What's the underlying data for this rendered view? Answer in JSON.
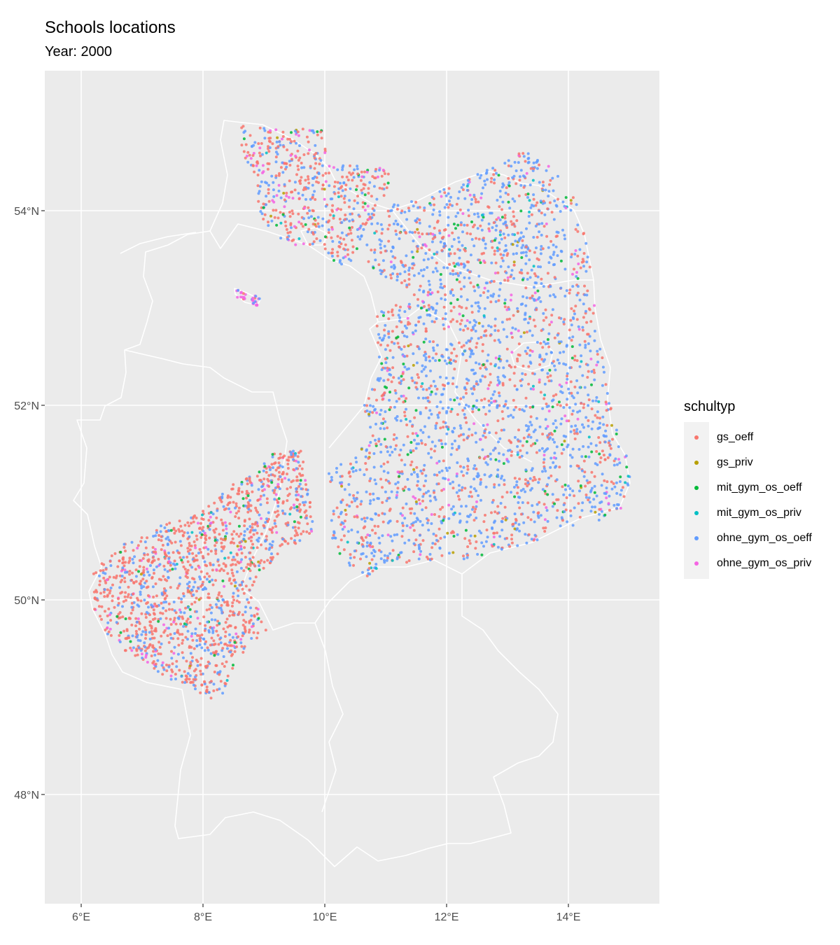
{
  "title": "Schools locations",
  "subtitle": "Year: 2000",
  "chart_data": {
    "type": "scatter",
    "title": "Schools locations",
    "subtitle": "Year: 2000",
    "xlabel": "",
    "ylabel": "",
    "x_ticks": [
      "6°E",
      "8°E",
      "10°E",
      "12°E",
      "14°E"
    ],
    "y_ticks": [
      "48°N",
      "50°N",
      "52°N",
      "54°N"
    ],
    "xlim": [
      5.4,
      15.5
    ],
    "ylim": [
      46.9,
      55.5
    ],
    "grid": true,
    "legend_position": "right",
    "legend_title": "schultyp",
    "series": [
      {
        "name": "gs_oeff",
        "color": "#F8766D"
      },
      {
        "name": "gs_priv",
        "color": "#B79F00"
      },
      {
        "name": "mit_gym_os_oeff",
        "color": "#00BA38"
      },
      {
        "name": "mit_gym_os_priv",
        "color": "#00BFC4"
      },
      {
        "name": "ohne_gym_os_oeff",
        "color": "#619CFF"
      },
      {
        "name": "ohne_gym_os_priv",
        "color": "#F564E3"
      }
    ]
  }
}
